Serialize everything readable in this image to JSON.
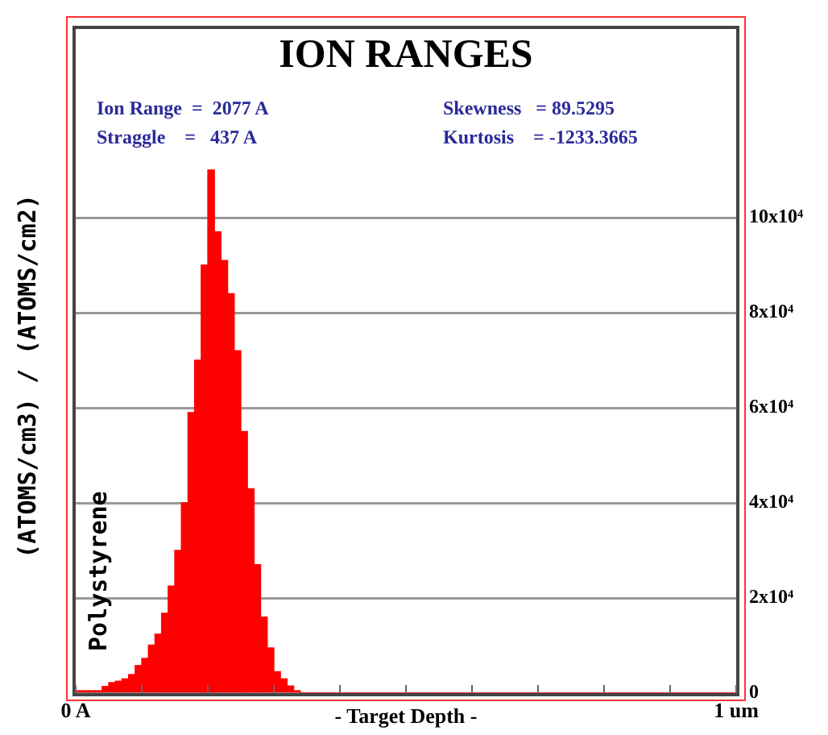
{
  "chart_data": {
    "type": "histogram",
    "title": "ION RANGES",
    "xlabel": "- Target Depth -",
    "ylabel": "(ATOMS/cm3) / (ATOMS/cm2)",
    "annotations": [
      "Ion Range  =  2077 A",
      "Straggle    =   437 A",
      "Skewness   = 89.5295",
      "Kurtosis    = -1233.3665",
      "Polystyrene"
    ],
    "bins": [
      0,
      0.01,
      0.02,
      0.03,
      0.04,
      0.05,
      0.06,
      0.07,
      0.08,
      0.09,
      0.1,
      0.11,
      0.12,
      0.13,
      0.14,
      0.15,
      0.16,
      0.17,
      0.18,
      0.19,
      0.2,
      0.21,
      0.22,
      0.23,
      0.24,
      0.25,
      0.26,
      0.27,
      0.28,
      0.29,
      0.3,
      0.31,
      0.32,
      0.33,
      0.34,
      0.35,
      0.36,
      0.37,
      0.38,
      0.39,
      0.4,
      0.41,
      0.42,
      0.43,
      0.44,
      0.45,
      0.46,
      0.47,
      0.48,
      0.49,
      0.5,
      0.51,
      0.52,
      0.53,
      0.54,
      0.55,
      0.56,
      0.57,
      0.58,
      0.59,
      0.6,
      0.61,
      0.62,
      0.63,
      0.64,
      0.65,
      0.66,
      0.67,
      0.68,
      0.69,
      0.7,
      0.71,
      0.72,
      0.73,
      0.74,
      0.75,
      0.76,
      0.77,
      0.78,
      0.79,
      0.8,
      0.81,
      0.82,
      0.83,
      0.84,
      0.85,
      0.86,
      0.87,
      0.88,
      0.89,
      0.9,
      0.91,
      0.92,
      0.93,
      0.94,
      0.95,
      0.96,
      0.97,
      0.98,
      0.99,
      1
    ],
    "values": [
      500,
      500,
      500,
      500,
      1400,
      2200,
      2500,
      3000,
      3900,
      5800,
      7300,
      10100,
      12400,
      16800,
      22500,
      30000,
      40000,
      59000,
      70000,
      90000,
      110000,
      97000,
      91000,
      84000,
      72000,
      55000,
      43000,
      27000,
      16000,
      9500,
      4500,
      3000,
      1500,
      500,
      0,
      0,
      0,
      0,
      0,
      0,
      0,
      0,
      0,
      0,
      0,
      0,
      0,
      0,
      0,
      0,
      0,
      0,
      0,
      0,
      0,
      0,
      0,
      0,
      0,
      0,
      0,
      0,
      0,
      0,
      0,
      0,
      0,
      0,
      0,
      0,
      0,
      0,
      0,
      0,
      0,
      0,
      0,
      0,
      0,
      0,
      0,
      0,
      0,
      0,
      0,
      0,
      0,
      0,
      0,
      0,
      0,
      0,
      0,
      0,
      0,
      0,
      0,
      0,
      0,
      0
    ],
    "color": "#ff0000",
    "xlim": [
      0,
      1
    ],
    "xticks": [
      {
        "value": 0,
        "label": "0 A"
      },
      {
        "value": 0.1,
        "label": null
      },
      {
        "value": 0.2,
        "label": null
      },
      {
        "value": 0.3,
        "label": null
      },
      {
        "value": 0.4,
        "label": null
      },
      {
        "value": 0.5,
        "label": null
      },
      {
        "value": 0.6,
        "label": null
      },
      {
        "value": 0.7,
        "label": null
      },
      {
        "value": 0.8,
        "label": null
      },
      {
        "value": 0.9,
        "label": null
      },
      {
        "value": 1,
        "label": "1 um"
      }
    ],
    "ylim": [
      0,
      140000
    ],
    "yticks": [
      0,
      {
        "value": 20000,
        "label": "2x10⁴"
      },
      {
        "value": 40000,
        "label": "4x10⁴"
      },
      {
        "value": 60000,
        "label": "6x10⁴"
      },
      {
        "value": 80000,
        "label": "8x10⁴"
      },
      {
        "value": 100000,
        "label": "10x10⁴"
      }
    ],
    "grid": "y",
    "legend": false
  }
}
